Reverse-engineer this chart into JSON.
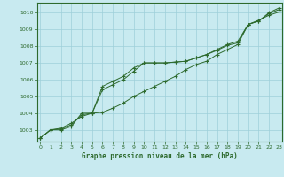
{
  "title": "Graphe pression niveau de la mer (hPa)",
  "background_color": "#c8eaf0",
  "grid_color": "#9ecfda",
  "line_color": "#2d6a2d",
  "x_ticks": [
    0,
    1,
    2,
    3,
    4,
    5,
    6,
    7,
    8,
    9,
    10,
    11,
    12,
    13,
    14,
    15,
    16,
    17,
    18,
    19,
    20,
    21,
    22,
    23
  ],
  "y_ticks": [
    1003,
    1004,
    1005,
    1006,
    1007,
    1008,
    1009,
    1010
  ],
  "xlim": [
    -0.3,
    23.3
  ],
  "ylim": [
    1002.3,
    1010.6
  ],
  "series": [
    [
      1002.5,
      1003.0,
      1003.0,
      1003.2,
      1004.0,
      1004.0,
      1005.6,
      1005.9,
      1006.2,
      1006.7,
      1007.0,
      1007.0,
      1007.0,
      1007.05,
      1007.1,
      1007.3,
      1007.5,
      1007.8,
      1008.1,
      1008.3,
      1009.3,
      1009.5,
      1010.0,
      1010.3
    ],
    [
      1002.5,
      1003.0,
      1003.1,
      1003.4,
      1003.8,
      1004.0,
      1004.05,
      1004.3,
      1004.6,
      1005.0,
      1005.3,
      1005.6,
      1005.9,
      1006.2,
      1006.6,
      1006.9,
      1007.1,
      1007.5,
      1007.8,
      1008.1,
      1009.3,
      1009.55,
      1009.85,
      1010.05
    ],
    [
      1002.5,
      1003.0,
      1003.05,
      1003.3,
      1003.9,
      1004.0,
      1005.4,
      1005.7,
      1006.0,
      1006.5,
      1007.0,
      1007.0,
      1007.0,
      1007.05,
      1007.1,
      1007.3,
      1007.5,
      1007.75,
      1008.05,
      1008.2,
      1009.3,
      1009.5,
      1009.95,
      1010.2
    ]
  ]
}
